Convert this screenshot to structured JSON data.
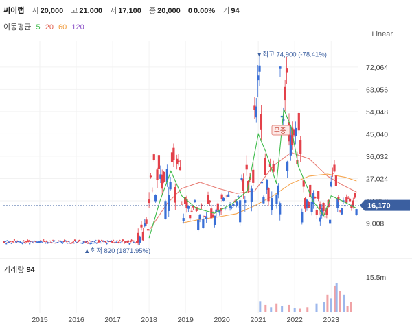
{
  "header": {
    "name": "씨이랩",
    "open_label": "시",
    "open": "20,000",
    "high_label": "고",
    "high": "21,000",
    "low_label": "저",
    "low": "17,100",
    "close_label": "종",
    "close": "20,000",
    "change": "0",
    "change_pct": "0.00%",
    "volume_label": "거",
    "volume": "94"
  },
  "ma": {
    "label": "이동평균",
    "periods": [
      {
        "value": "5",
        "color": "#3dbb4a"
      },
      {
        "value": "20",
        "color": "#e05a4a"
      },
      {
        "value": "60",
        "color": "#f09a3a"
      },
      {
        "value": "120",
        "color": "#8a4fc7"
      }
    ]
  },
  "scale_mode": "Linear",
  "volume_panel": {
    "label": "거래량",
    "value": "94",
    "tick": "15.5m"
  },
  "chart_data": {
    "type": "candlestick",
    "x_ticks": [
      "2015",
      "2016",
      "2017",
      "2018",
      "2019",
      "2020",
      "2021",
      "2022",
      "2023"
    ],
    "y_ticks": [
      9008,
      18016,
      27024,
      36032,
      45040,
      54048,
      63056,
      72064
    ],
    "y_tick_labels": [
      "9,008",
      "18,016",
      "27,024",
      "36,032",
      "45,040",
      "54,048",
      "63,056",
      "72,064"
    ],
    "ylim": [
      0,
      82000
    ],
    "current_price": 16170,
    "current_price_label": "16,170",
    "max_annotation": {
      "text": "▼최고 74,900 (-78.41%)",
      "value": 74900
    },
    "min_annotation": {
      "text": "▲최저 820 (1871.95%)",
      "value": 820
    },
    "mid_label": "무증",
    "colors": {
      "up": "#e3414a",
      "down": "#3a6fd6",
      "ma5": "#3dbb4a",
      "ma20": "#e87c74",
      "ma60": "#f5a54e",
      "accent": "#3b5fa0"
    },
    "segments": [
      {
        "from": 2014.0,
        "to": 2017.7,
        "mid": 1500,
        "amp": 600
      },
      {
        "from": 2017.7,
        "to": 2018.0,
        "mid": 6000,
        "amp": 5000
      },
      {
        "from": 2018.0,
        "to": 2018.9,
        "mid": 26000,
        "amp": 9000
      },
      {
        "from": 2018.9,
        "to": 2020.0,
        "mid": 14500,
        "amp": 4500
      },
      {
        "from": 2020.0,
        "to": 2020.5,
        "mid": 18000,
        "amp": 3000
      },
      {
        "from": 2020.5,
        "to": 2020.9,
        "mid": 25000,
        "amp": 10000
      },
      {
        "from": 2020.9,
        "to": 2021.1,
        "mid": 55000,
        "amp": 18000
      },
      {
        "from": 2021.1,
        "to": 2021.6,
        "mid": 25000,
        "amp": 8000
      },
      {
        "from": 2021.6,
        "to": 2021.8,
        "mid": 62000,
        "amp": 12000
      },
      {
        "from": 2021.8,
        "to": 2022.2,
        "mid": 40000,
        "amp": 10000
      },
      {
        "from": 2022.2,
        "to": 2022.7,
        "mid": 18000,
        "amp": 6000
      },
      {
        "from": 2022.7,
        "to": 2023.0,
        "mid": 13000,
        "amp": 4000
      },
      {
        "from": 2023.0,
        "to": 2023.2,
        "mid": 24000,
        "amp": 6000
      },
      {
        "from": 2023.2,
        "to": 2023.7,
        "mid": 16500,
        "amp": 3000
      }
    ],
    "ma20": [
      [
        2018.9,
        9000
      ],
      [
        2019.4,
        10500
      ],
      [
        2019.9,
        11500
      ],
      [
        2020.4,
        12800
      ],
      [
        2020.9,
        16000
      ],
      [
        2021.4,
        20000
      ],
      [
        2021.9,
        25000
      ],
      [
        2022.4,
        28000
      ],
      [
        2022.9,
        28800
      ],
      [
        2023.4,
        27500
      ],
      [
        2023.7,
        26000
      ]
    ],
    "ma60": [
      [
        2018.0,
        6000
      ],
      [
        2018.5,
        17000
      ],
      [
        2018.9,
        23000
      ],
      [
        2019.4,
        25500
      ],
      [
        2019.9,
        23000
      ],
      [
        2020.4,
        21000
      ],
      [
        2020.9,
        22000
      ],
      [
        2021.4,
        32000
      ],
      [
        2021.9,
        37500
      ],
      [
        2022.4,
        35000
      ],
      [
        2022.9,
        28000
      ],
      [
        2023.3,
        24500
      ],
      [
        2023.7,
        21500
      ]
    ],
    "ma5": [
      [
        2018.0,
        3000
      ],
      [
        2018.3,
        18000
      ],
      [
        2018.6,
        30000
      ],
      [
        2018.9,
        20000
      ],
      [
        2019.3,
        15000
      ],
      [
        2019.8,
        13000
      ],
      [
        2020.3,
        17000
      ],
      [
        2020.7,
        22000
      ],
      [
        2021.0,
        45000
      ],
      [
        2021.2,
        38000
      ],
      [
        2021.5,
        25000
      ],
      [
        2021.7,
        55000
      ],
      [
        2021.9,
        48000
      ],
      [
        2022.1,
        32000
      ],
      [
        2022.5,
        18000
      ],
      [
        2022.8,
        12000
      ],
      [
        2023.0,
        20000
      ],
      [
        2023.3,
        18000
      ],
      [
        2023.7,
        15000
      ]
    ],
    "volume": [
      {
        "x": 2021.05,
        "v": 0.28,
        "up": false
      },
      {
        "x": 2021.2,
        "v": 0.18,
        "up": true
      },
      {
        "x": 2021.35,
        "v": 0.12,
        "up": false
      },
      {
        "x": 2021.5,
        "v": 0.22,
        "up": true
      },
      {
        "x": 2021.65,
        "v": 0.15,
        "up": false
      },
      {
        "x": 2021.85,
        "v": 0.18,
        "up": true
      },
      {
        "x": 2022.0,
        "v": 0.1,
        "up": false
      },
      {
        "x": 2022.15,
        "v": 0.08,
        "up": true
      },
      {
        "x": 2022.35,
        "v": 0.12,
        "up": true
      },
      {
        "x": 2022.6,
        "v": 0.22,
        "up": false
      },
      {
        "x": 2022.8,
        "v": 0.25,
        "up": false
      },
      {
        "x": 2022.9,
        "v": 0.45,
        "up": true
      },
      {
        "x": 2023.0,
        "v": 0.35,
        "up": false
      },
      {
        "x": 2023.1,
        "v": 0.68,
        "up": true
      },
      {
        "x": 2023.15,
        "v": 0.75,
        "up": false
      },
      {
        "x": 2023.25,
        "v": 0.55,
        "up": true
      },
      {
        "x": 2023.35,
        "v": 0.45,
        "up": false
      },
      {
        "x": 2023.45,
        "v": 0.15,
        "up": true
      },
      {
        "x": 2023.55,
        "v": 0.25,
        "up": true
      }
    ]
  }
}
